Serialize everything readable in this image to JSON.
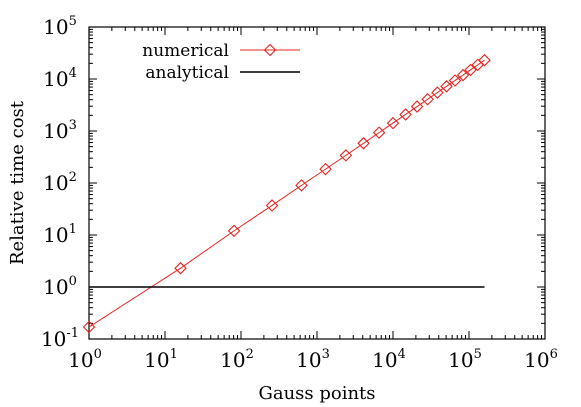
{
  "chart_data": {
    "type": "line",
    "xlabel": "Gauss points",
    "ylabel": "Relative time cost",
    "xscale": "log",
    "yscale": "log",
    "xlim": [
      1,
      1000000
    ],
    "ylim": [
      0.1,
      100000
    ],
    "xtick_base": "10",
    "xtick_exponents": [
      "0",
      "1",
      "2",
      "3",
      "4",
      "5",
      "6"
    ],
    "ytick_base": "10",
    "ytick_exponents": [
      "-1",
      "0",
      "1",
      "2",
      "3",
      "4",
      "5"
    ],
    "grid": false,
    "legend_position": "top-left",
    "series": [
      {
        "name": "numerical",
        "color": "#e8241f",
        "marker": "diamond",
        "x": [
          1,
          16,
          81,
          256,
          625,
          1296,
          2401,
          4096,
          6561,
          10000,
          14641,
          20736,
          28561,
          38416,
          50625,
          65536,
          83521,
          104976,
          130321,
          160000
        ],
        "y": [
          0.17,
          2.3,
          12,
          37,
          90,
          185,
          340,
          580,
          930,
          1420,
          2080,
          2950,
          4080,
          5480,
          7230,
          9370,
          11900,
          15000,
          18700,
          23000
        ]
      },
      {
        "name": "analytical",
        "color": "#000000",
        "marker": "none",
        "x": [
          1,
          160000
        ],
        "y": [
          1,
          1
        ]
      }
    ]
  }
}
